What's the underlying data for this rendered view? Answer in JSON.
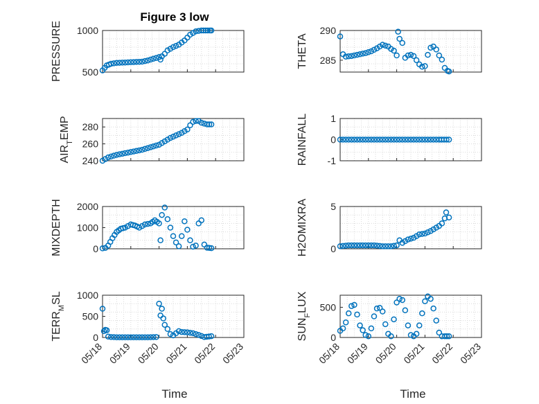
{
  "figure": {
    "title": "Figure 3 low",
    "xlabel": "Time",
    "marker_color": "#0072BD",
    "x_ticks": [
      "05/18",
      "05/19",
      "05/20",
      "05/21",
      "05/22",
      "05/23"
    ],
    "x_range": [
      "05/18",
      "05/23"
    ]
  },
  "chart_data": [
    {
      "type": "scatter",
      "name": "PRESSURE",
      "ylabel": "PRESSURE",
      "ylim": [
        500,
        1000
      ],
      "yticks": [
        500,
        1000
      ],
      "grid": true,
      "x_day_fraction": [
        0.0,
        0.15,
        0.3,
        0.5,
        0.8,
        1.1,
        1.4,
        1.6,
        1.8,
        2.0,
        2.05,
        2.1,
        2.2,
        2.3,
        2.5,
        2.7,
        2.9,
        3.1,
        3.3,
        3.5,
        3.65,
        3.8,
        3.85
      ],
      "values": [
        520,
        580,
        600,
        610,
        615,
        620,
        625,
        640,
        660,
        680,
        650,
        690,
        720,
        760,
        800,
        830,
        880,
        950,
        990,
        1000,
        1000,
        1000,
        1000
      ]
    },
    {
      "type": "scatter",
      "name": "THETA",
      "ylabel": "THETA",
      "ylim": [
        283,
        290
      ],
      "yticks": [
        285,
        290
      ],
      "grid": true,
      "x_day_fraction": [
        0.0,
        0.1,
        0.2,
        0.4,
        0.7,
        0.9,
        1.1,
        1.3,
        1.5,
        1.7,
        1.8,
        1.9,
        2.0,
        2.05,
        2.1,
        2.2,
        2.3,
        2.4,
        2.5,
        2.6,
        2.7,
        2.8,
        2.9,
        3.0,
        3.1,
        3.2,
        3.3,
        3.4,
        3.5,
        3.6,
        3.7,
        3.8,
        3.85
      ],
      "values": [
        289,
        286,
        285.6,
        285.7,
        286,
        286.2,
        286.5,
        287,
        287.6,
        287.3,
        286.9,
        286.6,
        285.8,
        289.8,
        288.6,
        287.9,
        285.4,
        285.8,
        285.9,
        285.7,
        285.0,
        284.3,
        283.9,
        284.0,
        285.9,
        287.1,
        287.3,
        286.8,
        285.8,
        285.1,
        283.7,
        283.2,
        283.1
      ]
    },
    {
      "type": "scatter",
      "name": "AIR_TEMP",
      "ylabel": "AIR_TEMP",
      "ylim": [
        240,
        290
      ],
      "yticks": [
        240,
        260,
        280
      ],
      "grid": true,
      "x_day_fraction": [
        0.0,
        0.2,
        0.5,
        0.8,
        1.1,
        1.4,
        1.7,
        2.0,
        2.2,
        2.4,
        2.6,
        2.8,
        3.0,
        3.1,
        3.2,
        3.3,
        3.4,
        3.5,
        3.6,
        3.7,
        3.85
      ],
      "values": [
        240,
        244,
        247,
        249,
        251,
        253,
        256,
        259,
        263,
        267,
        270,
        273,
        277,
        282,
        286,
        287,
        287,
        285,
        284,
        283,
        283
      ]
    },
    {
      "type": "scatter",
      "name": "RAINFALL",
      "ylabel": "RAINFALL",
      "ylim": [
        -1,
        1
      ],
      "yticks": [
        -1,
        0,
        1
      ],
      "grid": true,
      "x_day_fraction": [
        0.0,
        0.5,
        1.0,
        1.5,
        2.0,
        2.5,
        3.0,
        3.5,
        3.85
      ],
      "values": [
        0,
        0,
        0,
        0,
        0,
        0,
        0,
        0,
        0
      ]
    },
    {
      "type": "scatter",
      "name": "MIXDEPTH",
      "ylabel": "MIXDEPTH",
      "ylim": [
        0,
        2000
      ],
      "yticks": [
        0,
        1000,
        2000
      ],
      "grid": true,
      "x_day_fraction": [
        0.0,
        0.1,
        0.2,
        0.35,
        0.5,
        0.65,
        0.8,
        1.0,
        1.15,
        1.3,
        1.5,
        1.7,
        1.85,
        2.0,
        2.05,
        2.1,
        2.2,
        2.3,
        2.4,
        2.5,
        2.6,
        2.7,
        2.8,
        2.9,
        3.0,
        3.1,
        3.2,
        3.3,
        3.4,
        3.5,
        3.6,
        3.7,
        3.85
      ],
      "values": [
        20,
        40,
        150,
        500,
        800,
        950,
        1000,
        1150,
        1100,
        1000,
        1150,
        1200,
        1350,
        1200,
        400,
        1600,
        1950,
        1400,
        1000,
        600,
        300,
        120,
        600,
        1300,
        900,
        400,
        100,
        150,
        1200,
        1350,
        200,
        50,
        30
      ]
    },
    {
      "type": "scatter",
      "name": "H2OMIXRA",
      "ylabel": "H2OMIXRA",
      "ylim": [
        0,
        5
      ],
      "yticks": [
        0,
        5
      ],
      "grid": true,
      "x_day_fraction": [
        0.0,
        0.3,
        0.6,
        0.9,
        1.2,
        1.5,
        1.8,
        2.0,
        2.1,
        2.2,
        2.4,
        2.6,
        2.8,
        3.0,
        3.2,
        3.4,
        3.5,
        3.6,
        3.7,
        3.75,
        3.85
      ],
      "values": [
        0.3,
        0.4,
        0.4,
        0.4,
        0.4,
        0.3,
        0.3,
        0.4,
        1.0,
        0.7,
        1.1,
        1.3,
        1.7,
        1.8,
        2.1,
        2.5,
        2.7,
        3.0,
        3.6,
        4.3,
        3.7
      ]
    },
    {
      "type": "scatter",
      "name": "TERR_MSL",
      "ylabel": "TERR_MSL",
      "ylim": [
        0,
        1000
      ],
      "yticks": [
        0,
        500,
        1000
      ],
      "grid": true,
      "x_day_fraction": [
        0.0,
        0.05,
        0.1,
        0.15,
        0.2,
        0.3,
        0.5,
        0.8,
        1.2,
        1.6,
        1.9,
        2.0,
        2.05,
        2.1,
        2.15,
        2.2,
        2.3,
        2.4,
        2.5,
        2.6,
        2.7,
        2.8,
        3.0,
        3.2,
        3.4,
        3.6,
        3.85
      ],
      "values": [
        680,
        150,
        180,
        170,
        20,
        10,
        5,
        5,
        5,
        5,
        10,
        800,
        520,
        680,
        450,
        300,
        200,
        80,
        50,
        100,
        150,
        130,
        120,
        100,
        60,
        10,
        30
      ]
    },
    {
      "type": "scatter",
      "name": "SUN_FLUX",
      "ylabel": "SUN_FLUX",
      "ylim": [
        0,
        700
      ],
      "yticks": [
        0,
        500
      ],
      "grid": true,
      "x_day_fraction": [
        0.0,
        0.1,
        0.2,
        0.3,
        0.4,
        0.5,
        0.6,
        0.7,
        0.8,
        0.9,
        1.0,
        1.1,
        1.2,
        1.3,
        1.4,
        1.5,
        1.6,
        1.7,
        1.8,
        1.9,
        2.0,
        2.1,
        2.2,
        2.3,
        2.4,
        2.5,
        2.6,
        2.7,
        2.8,
        2.9,
        3.0,
        3.1,
        3.2,
        3.3,
        3.4,
        3.5,
        3.6,
        3.7,
        3.85
      ],
      "values": [
        110,
        150,
        250,
        400,
        520,
        540,
        380,
        200,
        120,
        40,
        20,
        150,
        350,
        480,
        490,
        430,
        220,
        60,
        20,
        300,
        580,
        640,
        620,
        450,
        200,
        40,
        20,
        60,
        200,
        400,
        600,
        680,
        640,
        480,
        280,
        80,
        20,
        20,
        20
      ]
    }
  ]
}
